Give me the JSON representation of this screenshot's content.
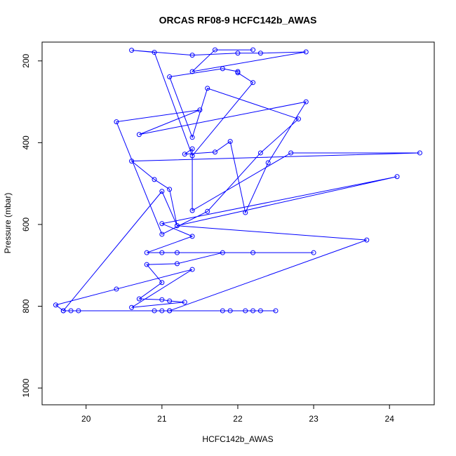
{
  "chart_data": {
    "type": "line",
    "title": "ORCAS RF08-9 HCFC142b_AWAS",
    "xlabel": "HCFC142b_AWAS",
    "ylabel": "Pressure (mbar)",
    "color": "#0000ff",
    "marker": "circle",
    "xlim": [
      19.42,
      24.59
    ],
    "ylim": [
      1041,
      154
    ],
    "xticks": [
      20,
      21,
      22,
      23,
      24
    ],
    "yticks": [
      200,
      400,
      600,
      800,
      1000
    ],
    "x": [
      19.7,
      19.8,
      19.9,
      20.9,
      21.0,
      21.1,
      21.8,
      21.9,
      22.1,
      22.2,
      22.3,
      22.5,
      21.1,
      23.7,
      21.2,
      24.1,
      21.0,
      21.4,
      20.8,
      23.0,
      21.0,
      22.2,
      21.2,
      21.8,
      21.2,
      20.8,
      21.0,
      20.7,
      21.0,
      21.1,
      21.3,
      20.6,
      21.4,
      20.4,
      19.6,
      19.7,
      21.0,
      21.2,
      21.1,
      20.9,
      20.6,
      24.4,
      22.7,
      21.4,
      21.4,
      21.3,
      21.7,
      21.9,
      22.1,
      22.4,
      22.9,
      20.7,
      21.5,
      20.4,
      21.0,
      21.6,
      22.3,
      22.8,
      21.6,
      21.4,
      21.1,
      21.8,
      22.0,
      22.0,
      22.2,
      21.4,
      20.9,
      20.6,
      21.4,
      22.0,
      22.3,
      22.9,
      21.4,
      21.7,
      22.2
    ],
    "values": [
      811,
      811,
      811,
      811,
      811,
      811,
      811,
      811,
      811,
      811,
      811,
      811,
      811,
      638,
      603,
      483,
      598,
      629,
      669,
      669,
      669,
      669,
      669,
      669,
      696,
      698,
      742,
      782,
      784,
      787,
      790,
      803,
      710,
      758,
      797,
      811,
      519,
      603,
      514,
      490,
      445,
      425,
      425,
      566,
      415,
      428,
      423,
      397,
      571,
      449,
      300,
      380,
      320,
      349,
      624,
      568,
      425,
      342,
      267,
      387,
      239,
      219,
      226,
      229,
      253,
      432,
      179,
      174,
      186,
      181,
      181,
      178,
      226,
      173,
      173
    ]
  }
}
